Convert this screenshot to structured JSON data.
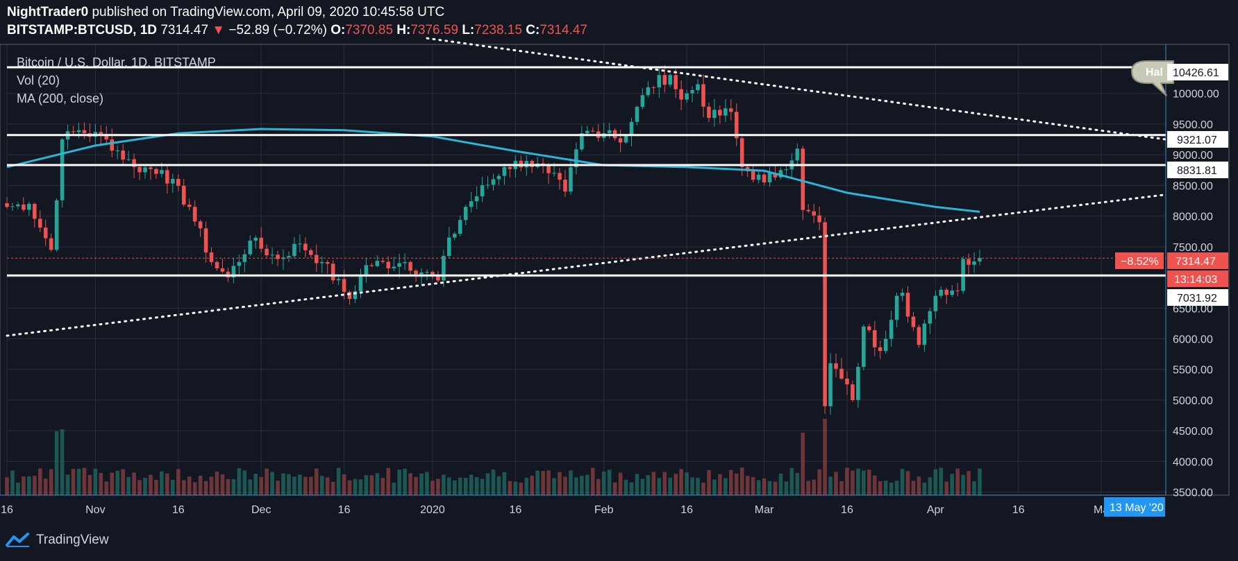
{
  "header": {
    "author": "NightTrader0",
    "published_text": " published on TradingView.com, April 09, 2020 10:45:58 UTC",
    "symbol": "BITSTAMP:BTCUSD, 1D",
    "last": "7314.47",
    "change": "−52.89 (−0.72%)",
    "o_label": "O:",
    "o": "7370.85",
    "h_label": "H:",
    "h": "7376.59",
    "l_label": "L:",
    "l": "7238.15",
    "c_label": "C:",
    "c": "7314.47"
  },
  "legend": {
    "title": "Bitcoin / U.S. Dollar, 1D, BITSTAMP",
    "vol": "Vol (20)",
    "ma": "MA (200, close)"
  },
  "price_tags": {
    "percent": "−8.52%",
    "last": "7314.47",
    "countdown": "13:14:03",
    "sr_10426": "10426.61",
    "sr_9321": "9321.07",
    "sr_8831": "8831.81",
    "sr_7031": "7031.92",
    "date_badge": "13 May '20",
    "note_text": "Hal"
  },
  "footer": {
    "brand": "TradingView"
  },
  "colors": {
    "up": "#26a69a",
    "down": "#ef5350",
    "ma": "#2bb5d8",
    "line": "#ffffff",
    "badge": "#2196f3"
  },
  "chart_data": {
    "type": "candlestick",
    "title": "Bitcoin / U.S. Dollar, 1D, BITSTAMP",
    "x_ticks": [
      "16",
      "Nov",
      "16",
      "Dec",
      "16",
      "2020",
      "16",
      "Feb",
      "16",
      "Mar",
      "16",
      "Apr",
      "16",
      "Ma"
    ],
    "y_ticks": [
      "3500.00",
      "4000.00",
      "4500.00",
      "5000.00",
      "5500.00",
      "6000.00",
      "6500.00",
      "7000.00",
      "7500.00",
      "8000.00",
      "8500.00",
      "9000.00",
      "9500.00",
      "10000.00"
    ],
    "ylim": [
      3450,
      10800
    ],
    "date_range": [
      "2019-10-16",
      "2020-04-09"
    ],
    "horizontal_levels": [
      10426.61,
      9321.07,
      8831.81,
      7031.92
    ],
    "last_price": 7314.47,
    "ohlc_anchor_closes": [
      [
        "2019-10-16",
        8150
      ],
      [
        "2019-10-20",
        8200
      ],
      [
        "2019-10-24",
        7450
      ],
      [
        "2019-10-26",
        9250
      ],
      [
        "2019-10-29",
        9400
      ],
      [
        "2019-11-03",
        9250
      ],
      [
        "2019-11-08",
        8800
      ],
      [
        "2019-11-13",
        8750
      ],
      [
        "2019-11-18",
        8150
      ],
      [
        "2019-11-22",
        7250
      ],
      [
        "2019-11-25",
        7000
      ],
      [
        "2019-11-29",
        7600
      ],
      [
        "2019-12-04",
        7300
      ],
      [
        "2019-12-08",
        7550
      ],
      [
        "2019-12-12",
        7250
      ],
      [
        "2019-12-17",
        6650
      ],
      [
        "2019-12-20",
        7200
      ],
      [
        "2019-12-27",
        7250
      ],
      [
        "2020-01-02",
        6950
      ],
      [
        "2020-01-03",
        7350
      ],
      [
        "2020-01-07",
        8150
      ],
      [
        "2020-01-14",
        8800
      ],
      [
        "2020-01-18",
        8900
      ],
      [
        "2020-01-22",
        8700
      ],
      [
        "2020-01-25",
        8400
      ],
      [
        "2020-01-28",
        9350
      ],
      [
        "2020-02-02",
        9400
      ],
      [
        "2020-02-04",
        9200
      ],
      [
        "2020-02-09",
        10100
      ],
      [
        "2020-02-13",
        10300
      ],
      [
        "2020-02-15",
        9900
      ],
      [
        "2020-02-18",
        10150
      ],
      [
        "2020-02-20",
        9600
      ],
      [
        "2020-02-24",
        9700
      ],
      [
        "2020-02-26",
        8800
      ],
      [
        "2020-03-01",
        8550
      ],
      [
        "2020-03-04",
        8750
      ],
      [
        "2020-03-07",
        9100
      ],
      [
        "2020-03-08",
        8100
      ],
      [
        "2020-03-11",
        7900
      ],
      [
        "2020-03-12",
        4900
      ],
      [
        "2020-03-13",
        5600
      ],
      [
        "2020-03-15",
        5350
      ],
      [
        "2020-03-17",
        5000
      ],
      [
        "2020-03-19",
        6200
      ],
      [
        "2020-03-22",
        5800
      ],
      [
        "2020-03-25",
        6700
      ],
      [
        "2020-03-26",
        6750
      ],
      [
        "2020-03-29",
        5900
      ],
      [
        "2020-03-31",
        6450
      ],
      [
        "2020-04-02",
        6800
      ],
      [
        "2020-04-05",
        6780
      ],
      [
        "2020-04-06",
        7300
      ],
      [
        "2020-04-09",
        7314.47
      ]
    ],
    "ma200_points": [
      [
        "2019-10-16",
        8800
      ],
      [
        "2019-11-01",
        9150
      ],
      [
        "2019-11-16",
        9350
      ],
      [
        "2019-12-01",
        9420
      ],
      [
        "2019-12-16",
        9400
      ],
      [
        "2020-01-01",
        9300
      ],
      [
        "2020-01-16",
        9060
      ],
      [
        "2020-02-01",
        8830
      ],
      [
        "2020-02-16",
        8800
      ],
      [
        "2020-03-01",
        8740
      ],
      [
        "2020-03-16",
        8380
      ],
      [
        "2020-04-01",
        8150
      ],
      [
        "2020-04-09",
        8070
      ]
    ]
  }
}
